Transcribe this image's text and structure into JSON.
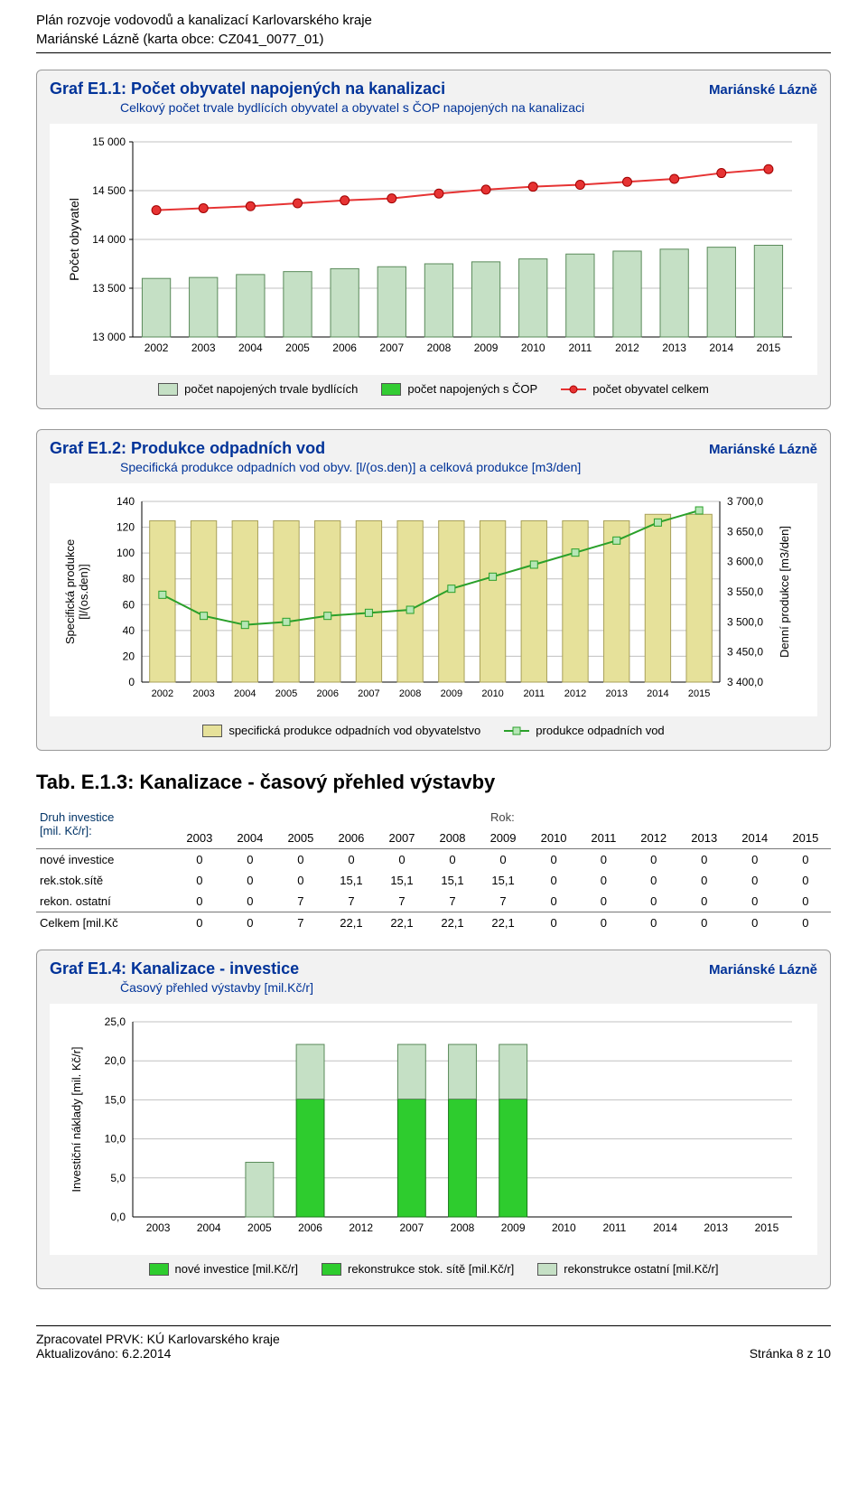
{
  "header": {
    "line1": "Plán rozvoje vodovodů a kanalizací Karlovarského kraje",
    "line2": "Mariánské Lázně (karta obce: CZ041_0077_01)"
  },
  "chart1": {
    "title": "Graf E1.1: Počet obyvatel napojených na kanalizaci",
    "right": "Mariánské Lázně",
    "subtitle": "Celkový počet trvale bydlících obyvatel a obyvatel s ČOP napojených na kanalizaci",
    "ylabel": "Počet obyvatel",
    "years": [
      "2002",
      "2003",
      "2004",
      "2005",
      "2006",
      "2007",
      "2008",
      "2009",
      "2010",
      "2011",
      "2012",
      "2013",
      "2014",
      "2015"
    ],
    "yticks": [
      "13 000",
      "13 500",
      "14 000",
      "14 500",
      "15 000"
    ],
    "ymin": 13000,
    "ymax": 15000,
    "bars_light": [
      13600,
      13610,
      13640,
      13670,
      13700,
      13720,
      13750,
      13770,
      13800,
      13850,
      13880,
      13900,
      13920,
      13940
    ],
    "line_red": [
      14300,
      14320,
      14340,
      14370,
      14400,
      14420,
      14470,
      14510,
      14540,
      14560,
      14590,
      14620,
      14680,
      14720
    ],
    "legend": {
      "a": "počet napojených trvale bydlících",
      "b": "počet napojených s ČOP",
      "c": "počet obyvatel celkem"
    },
    "colors": {
      "bar_light": "#c5e0c5",
      "bar_light_stroke": "#5a8a5a",
      "bar_green": "#33cc33",
      "line_red": "#e63333",
      "marker_red": "#e63333",
      "bg": "#ffffff",
      "grid": "#c0c0c0"
    }
  },
  "chart2": {
    "title": "Graf E1.2: Produkce odpadních vod",
    "right": "Mariánské Lázně",
    "subtitle": "Specifická produkce odpadních vod obyv. [l/(os.den)] a celková produkce [m3/den]",
    "ylabel_left": "Specifická produkce\n[l/(os.den)]",
    "ylabel_right": "Denní produkce [m3/den]",
    "years": [
      "2002",
      "2003",
      "2004",
      "2005",
      "2006",
      "2007",
      "2008",
      "2009",
      "2010",
      "2011",
      "2012",
      "2013",
      "2014",
      "2015"
    ],
    "yleft_ticks": [
      "0",
      "20",
      "40",
      "60",
      "80",
      "100",
      "120",
      "140"
    ],
    "yleft_min": 0,
    "yleft_max": 140,
    "yright_ticks": [
      "3 400,0",
      "3 450,0",
      "3 500,0",
      "3 550,0",
      "3 600,0",
      "3 650,0",
      "3 700,0"
    ],
    "yright_min": 3400,
    "yright_max": 3700,
    "bars": [
      125,
      125,
      125,
      125,
      125,
      125,
      125,
      125,
      125,
      125,
      125,
      125,
      130,
      130
    ],
    "line_green": [
      3545,
      3510,
      3495,
      3500,
      3510,
      3515,
      3520,
      3555,
      3575,
      3595,
      3615,
      3635,
      3665,
      3685
    ],
    "legend": {
      "a": "specifická produkce odpadních vod obyvatelstvo",
      "b": "produkce odpadních vod"
    },
    "colors": {
      "bar": "#e6e19a",
      "bar_stroke": "#a8a05a",
      "line": "#2aa02a",
      "marker_fill": "#b6e6b6",
      "bg": "#ffffff",
      "grid": "#c0c0c0"
    }
  },
  "table": {
    "title": "Tab. E.1.3: Kanalizace - časový přehled výstavby",
    "group_label1": "Druh investice",
    "group_label2": "[mil. Kč/r]:",
    "rok_header": "Rok:",
    "years": [
      "2003",
      "2004",
      "2005",
      "2006",
      "2007",
      "2008",
      "2009",
      "2010",
      "2011",
      "2012",
      "2013",
      "2014",
      "2015"
    ],
    "rows": [
      {
        "label": "nové investice",
        "vals": [
          "0",
          "0",
          "0",
          "0",
          "0",
          "0",
          "0",
          "0",
          "0",
          "0",
          "0",
          "0",
          "0"
        ]
      },
      {
        "label": "rek.stok.sítě",
        "vals": [
          "0",
          "0",
          "0",
          "15,1",
          "15,1",
          "15,1",
          "15,1",
          "0",
          "0",
          "0",
          "0",
          "0",
          "0"
        ]
      },
      {
        "label": "rekon. ostatní",
        "vals": [
          "0",
          "0",
          "7",
          "7",
          "7",
          "7",
          "7",
          "0",
          "0",
          "0",
          "0",
          "0",
          "0"
        ]
      }
    ],
    "total": {
      "label": "Celkem [mil.Kč",
      "vals": [
        "0",
        "0",
        "7",
        "22,1",
        "22,1",
        "22,1",
        "22,1",
        "0",
        "0",
        "0",
        "0",
        "0",
        "0"
      ]
    }
  },
  "chart4": {
    "title": "Graf E1.4: Kanalizace - investice",
    "right": "Mariánské Lázně",
    "subtitle": "Časový přehled výstavby [mil.Kč/r]",
    "ylabel": "Investiční náklady [mil. Kč/r]",
    "years": [
      "2003",
      "2004",
      "2005",
      "2006",
      "2012",
      "2007",
      "2008",
      "2009",
      "2010",
      "2011",
      "2014",
      "2013",
      "2015"
    ],
    "yticks": [
      "0,0",
      "5,0",
      "10,0",
      "15,0",
      "20,0",
      "25,0"
    ],
    "ymin": 0,
    "ymax": 25,
    "series": {
      "nove": [
        0,
        0,
        0,
        0,
        0,
        0,
        0,
        0,
        0,
        0,
        0,
        0,
        0
      ],
      "stok": [
        0,
        0,
        0,
        15.1,
        0,
        15.1,
        15.1,
        15.1,
        0,
        0,
        0,
        0,
        0
      ],
      "ostatni": [
        0,
        0,
        7,
        7,
        0,
        7,
        7,
        7,
        0,
        0,
        0,
        0,
        0
      ]
    },
    "legend": {
      "a": "nové investice [mil.Kč/r]",
      "b": "rekonstrukce stok. sítě [mil.Kč/r]",
      "c": "rekonstrukce ostatní [mil.Kč/r]"
    },
    "colors": {
      "nove": "#2ecc2e",
      "nove_stroke": "#1a7a1a",
      "stok": "#2ecc2e",
      "stok_stroke": "#1a7a1a",
      "ostatni": "#c5e0c5",
      "ostatni_stroke": "#5a8a5a",
      "bg": "#ffffff",
      "grid": "#c0c0c0"
    }
  },
  "footer": {
    "left1": "Zpracovatel PRVK: KÚ Karlovarského kraje",
    "left2": "Aktualizováno: 6.2.2014",
    "right": "Stránka 8 z 10"
  }
}
